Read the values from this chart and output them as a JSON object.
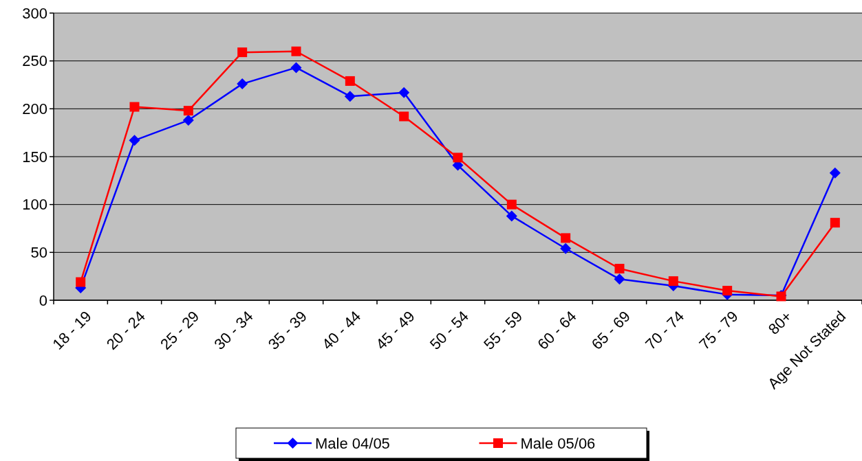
{
  "chart_data": {
    "type": "line",
    "categories": [
      "18 - 19",
      "20 - 24",
      "25 - 29",
      "30 - 34",
      "35 - 39",
      "40 - 44",
      "45 - 49",
      "50 - 54",
      "55 - 59",
      "60 - 64",
      "65 - 69",
      "70 - 74",
      "75 - 79",
      "80+",
      "Age Not Stated"
    ],
    "series": [
      {
        "name": "Male 04/05",
        "color": "#0000ff",
        "marker": "diamond",
        "values": [
          13,
          167,
          188,
          226,
          243,
          213,
          217,
          141,
          88,
          54,
          22,
          15,
          6,
          5,
          133
        ]
      },
      {
        "name": "Male 05/06",
        "color": "#ff0000",
        "marker": "square",
        "values": [
          19,
          202,
          198,
          259,
          260,
          229,
          192,
          149,
          100,
          65,
          33,
          20,
          10,
          4,
          81
        ]
      }
    ],
    "ylim": [
      0,
      300
    ],
    "yticks": [
      0,
      50,
      100,
      150,
      200,
      250,
      300
    ],
    "grid": "y",
    "legend": "bottom",
    "line_style": "solid"
  }
}
